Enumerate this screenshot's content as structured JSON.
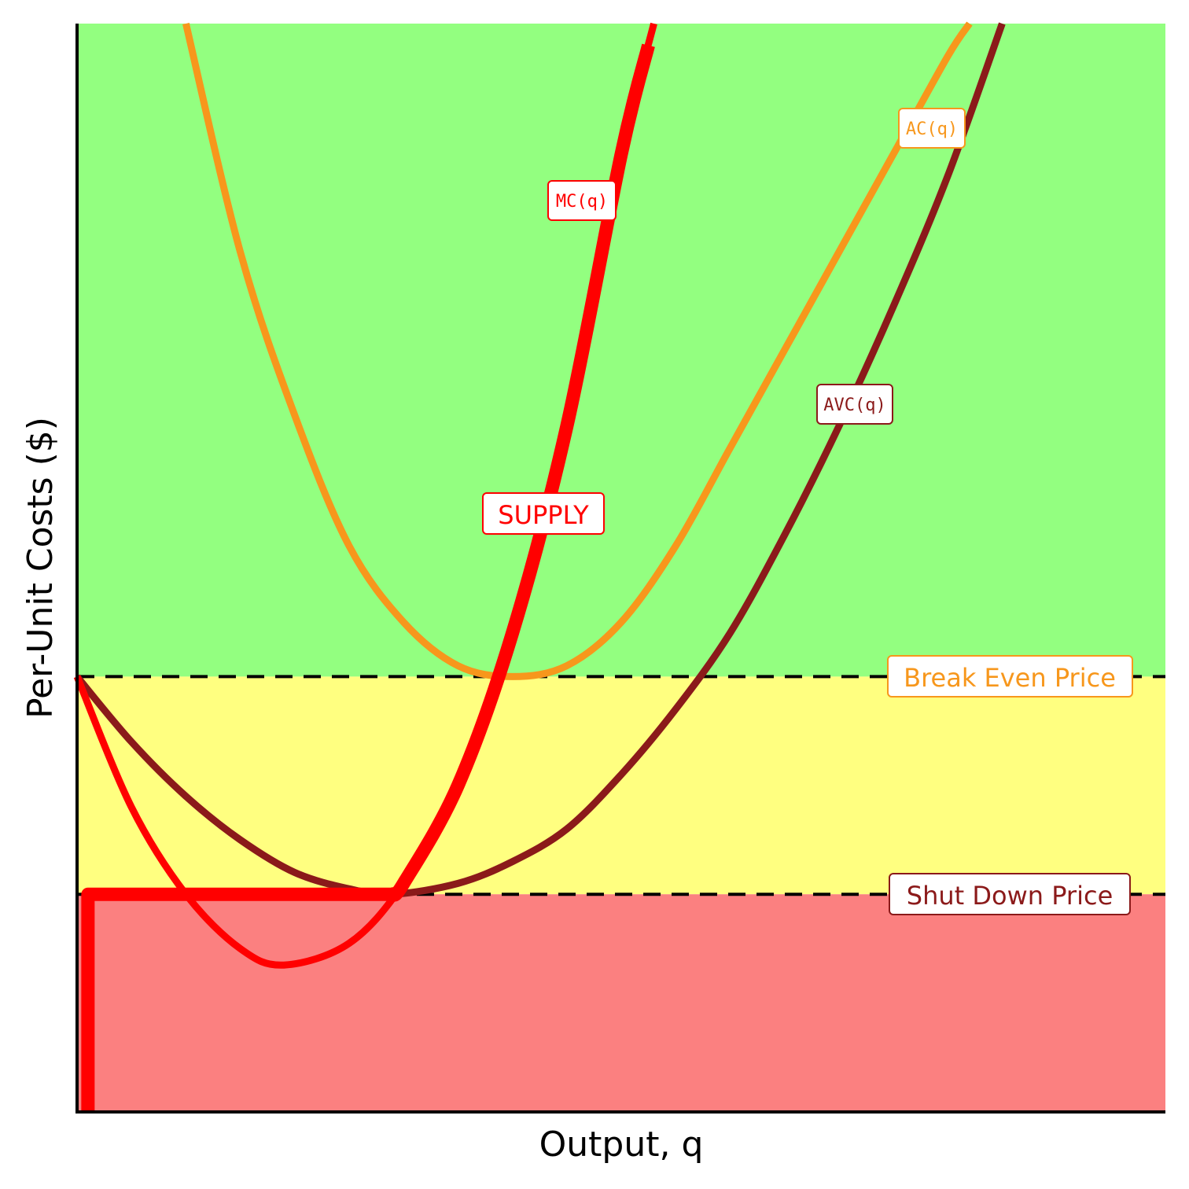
{
  "chart_data": {
    "type": "line",
    "title": "",
    "xlabel": "Output, q",
    "ylabel": "Per-Unit Costs ($)",
    "xlim": [
      0,
      10
    ],
    "ylim": [
      0,
      10
    ],
    "grid": false,
    "regions": [
      {
        "name": "profit-region",
        "from": 4.0,
        "to": 10,
        "color": "#93FF80"
      },
      {
        "name": "loss-region",
        "from": 2.0,
        "to": 4.0,
        "color": "#FFFF80"
      },
      {
        "name": "shutdown-region",
        "from": 0,
        "to": 2.0,
        "color": "#FB8080"
      }
    ],
    "series": [
      {
        "name": "AC(q)",
        "color": "#F7971C",
        "x": [
          1.0,
          1.5,
          2.0,
          2.5,
          3.0,
          3.5,
          4.0,
          4.5,
          5.0,
          5.5,
          6.0,
          6.5,
          7.0,
          7.5,
          8.0,
          8.2
        ],
        "y": [
          10.0,
          7.9,
          6.4,
          5.2,
          4.5,
          4.1,
          4.0,
          4.1,
          4.5,
          5.2,
          6.1,
          7.0,
          7.9,
          8.8,
          9.7,
          10.0
        ]
      },
      {
        "name": "AVC(q)",
        "color": "#8B1A1A",
        "x": [
          0,
          0.5,
          1.0,
          1.5,
          2.0,
          2.5,
          2.9,
          3.5,
          4.0,
          4.5,
          5.0,
          5.5,
          6.0,
          6.5,
          7.0,
          7.5,
          8.0,
          8.5
        ],
        "y": [
          4.0,
          3.4,
          2.9,
          2.5,
          2.2,
          2.05,
          2.0,
          2.1,
          2.3,
          2.6,
          3.1,
          3.7,
          4.4,
          5.3,
          6.3,
          7.4,
          8.6,
          10.0
        ]
      },
      {
        "name": "MC(q)",
        "color": "#FF0000",
        "x": [
          0,
          0.5,
          1.0,
          1.5,
          1.9,
          2.5,
          3.0,
          3.5,
          4.0,
          4.5,
          5.0,
          5.3
        ],
        "y": [
          4.0,
          2.8,
          2.0,
          1.5,
          1.35,
          1.55,
          2.1,
          3.0,
          4.4,
          6.3,
          8.8,
          10.0
        ]
      },
      {
        "name": "SUPPLY",
        "color": "#FF0000",
        "x": [
          0.1,
          0.1,
          2.9,
          3.0,
          3.5,
          4.0,
          4.5,
          5.0,
          5.25
        ],
        "y": [
          0,
          2.0,
          2.0,
          2.1,
          3.0,
          4.4,
          6.3,
          8.8,
          9.8
        ]
      }
    ],
    "reference_lines": [
      {
        "name": "Break Even Price",
        "y": 4.0,
        "color": "#F7971C"
      },
      {
        "name": "Shut Down Price",
        "y": 2.0,
        "color": "#8B1A1A"
      }
    ],
    "labels": {
      "ac": "AC(q)",
      "avc": "AVC(q)",
      "mc": "MC(q)",
      "supply": "SUPPLY",
      "break_even": "Break Even Price",
      "shut_down": "Shut Down Price"
    }
  }
}
